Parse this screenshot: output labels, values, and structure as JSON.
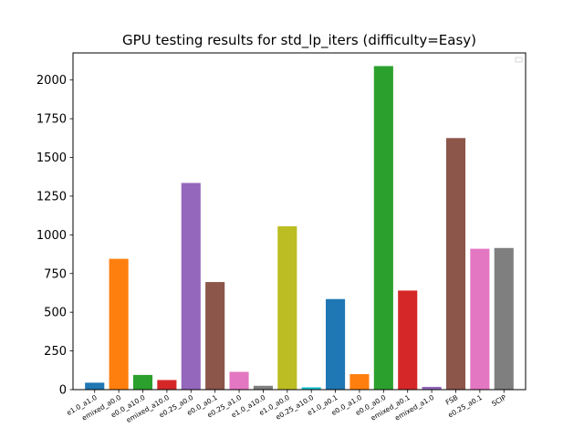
{
  "chart_data": {
    "type": "bar",
    "title": "GPU testing results for std_lp_iters (difficulty=Easy)",
    "xlabel": "",
    "ylabel": "",
    "ylim": [
      0,
      2175
    ],
    "yticks": [
      0,
      250,
      500,
      750,
      1000,
      1250,
      1500,
      1750,
      2000
    ],
    "legend": "top-right (empty)",
    "grid": false,
    "categories": [
      "e1.0_a1.0",
      "emixed_a0.0",
      "e0.0_a10.0",
      "emixed_a10.0",
      "e0.25_a0.0",
      "e0.0_a0.1",
      "e0.25_a1.0",
      "e1.0_a10.0",
      "e1.0_a0.0",
      "e0.25_a10.0",
      "e1.0_a0.1",
      "e0.0_a1.0",
      "e0.0_a0.0",
      "emixed_a0.1",
      "emixed_a1.0",
      "FSB",
      "e0.25_a0.1",
      "SCIP"
    ],
    "values": [
      45,
      845,
      95,
      62,
      1335,
      695,
      115,
      25,
      1055,
      15,
      585,
      100,
      2090,
      640,
      18,
      1625,
      910,
      915
    ],
    "colors": [
      "#1f77b4",
      "#ff7f0e",
      "#2ca02c",
      "#d62728",
      "#9467bd",
      "#8c564b",
      "#e377c2",
      "#7f7f7f",
      "#bcbd22",
      "#17becf",
      "#1f77b4",
      "#ff7f0e",
      "#2ca02c",
      "#d62728",
      "#9467bd",
      "#8c564b",
      "#e377c2",
      "#7f7f7f"
    ]
  }
}
